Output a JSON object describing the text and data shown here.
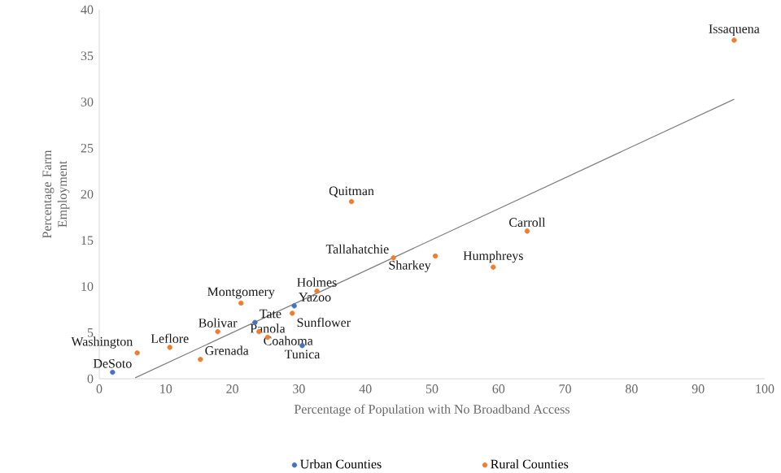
{
  "chart_data": {
    "type": "scatter",
    "xlabel": "Percentage of Population with No Broadband Access",
    "ylabel": "Percentage Farm Employment",
    "xlim": [
      0,
      100
    ],
    "xticks": [
      0,
      10,
      20,
      30,
      40,
      50,
      60,
      70,
      80,
      90,
      100
    ],
    "ylim": [
      0,
      40
    ],
    "yticks": [
      0,
      5,
      10,
      15,
      20,
      25,
      30,
      35,
      40
    ],
    "legend": "bottom",
    "series": [
      {
        "name": "Urban Counties",
        "marker": "circle",
        "color": "#4472c4",
        "x": [
          2,
          30.5,
          23.4,
          29.3
        ],
        "values": [
          0.7,
          3.6,
          6.1,
          7.9
        ]
      },
      {
        "name": "Rural Counties",
        "marker": "circle",
        "color": "#ed7d31",
        "x": [
          5.7,
          10.6,
          15.2,
          17.8,
          21.3,
          24,
          25.3,
          29,
          32.7,
          37.9,
          44.2,
          50.5,
          59.2,
          64.3,
          95.4
        ],
        "values": [
          2.8,
          3.4,
          2.1,
          5.1,
          8.2,
          5.1,
          4.5,
          7.1,
          9.5,
          19.2,
          13.1,
          13.3,
          12.1,
          16.0,
          36.7
        ]
      },
      {
        "type": "line",
        "marker": "none",
        "color": "#808080",
        "x": [
          5.4,
          95.4
        ],
        "values": [
          0.1,
          30.3
        ]
      }
    ],
    "annotations": [
      {
        "text": "DeSoto",
        "x": 2,
        "y": 0.7
      },
      {
        "text": "Tunica",
        "x": 30.5,
        "y": 3.6
      },
      {
        "text": "Tate",
        "x": 23.4,
        "y": 6.1
      },
      {
        "text": "Yazoo",
        "x": 29.3,
        "y": 7.9
      },
      {
        "text": "Washington",
        "x": 5.7,
        "y": 2.8
      },
      {
        "text": "Leflore",
        "x": 10.6,
        "y": 3.4
      },
      {
        "text": "Grenada",
        "x": 15.2,
        "y": 2.1
      },
      {
        "text": "Bolivar",
        "x": 17.8,
        "y": 5.1
      },
      {
        "text": "Montgomery",
        "x": 21.3,
        "y": 8.2
      },
      {
        "text": "Coahoma",
        "x": 24,
        "y": 5.1
      },
      {
        "text": "Panola",
        "x": 25.3,
        "y": 4.5
      },
      {
        "text": "Sunflower",
        "x": 29,
        "y": 7.1
      },
      {
        "text": "Holmes",
        "x": 32.7,
        "y": 9.5
      },
      {
        "text": "Quitman",
        "x": 37.9,
        "y": 19.2
      },
      {
        "text": "Tallahatchie",
        "x": 44.2,
        "y": 13.1
      },
      {
        "text": "Sharkey",
        "x": 50.5,
        "y": 13.3
      },
      {
        "text": "Humphreys",
        "x": 59.2,
        "y": 12.1
      },
      {
        "text": "Carroll",
        "x": 64.3,
        "y": 16.0
      },
      {
        "text": "Issaquena",
        "x": 95.4,
        "y": 36.7
      }
    ]
  }
}
